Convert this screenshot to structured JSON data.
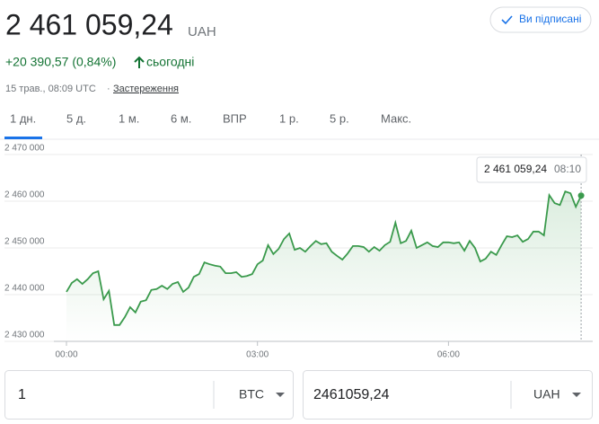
{
  "header": {
    "price": "2 461 059,24",
    "currency": "UAH",
    "change": "+20 390,57 (0,84%)",
    "change_period": "сьогодні",
    "timestamp": "15 трав., 08:09 UTC",
    "separator": "·",
    "disclaimer": "Застереження",
    "follow_button": "Ви підписані"
  },
  "tabs": [
    "1 дн.",
    "5 д.",
    "1 м.",
    "6 м.",
    "ВПР",
    "1 р.",
    "5 р.",
    "Макс."
  ],
  "chart_data": {
    "type": "line",
    "color": "#3a9a4c",
    "x": [
      0,
      5,
      10,
      15,
      20,
      25,
      30,
      35,
      40,
      45,
      50,
      55,
      60,
      65,
      70,
      75,
      80,
      85,
      90,
      95,
      100,
      105,
      110,
      115,
      120,
      125,
      130,
      135,
      140,
      145,
      150,
      155,
      160,
      165,
      170,
      175,
      180,
      185,
      190,
      195,
      200,
      205,
      210,
      215,
      220,
      225,
      230,
      235,
      240,
      245,
      250,
      255,
      260,
      265,
      270,
      275,
      280,
      285,
      290,
      295,
      300,
      305,
      310,
      315,
      320,
      325,
      330,
      335,
      340,
      345,
      350,
      355,
      360,
      365,
      370,
      375,
      380,
      385,
      390,
      395,
      400,
      405,
      410,
      415,
      420,
      425,
      430,
      435,
      440,
      445,
      450,
      455,
      460,
      465,
      470,
      475,
      480,
      485
    ],
    "values": [
      2440600,
      2442500,
      2443300,
      2442300,
      2443300,
      2444600,
      2445000,
      2439000,
      2440800,
      2433500,
      2433500,
      2435200,
      2437300,
      2436200,
      2438500,
      2438800,
      2441000,
      2441200,
      2441900,
      2441200,
      2442300,
      2442700,
      2440600,
      2441500,
      2443800,
      2444400,
      2446900,
      2446500,
      2446200,
      2446000,
      2444600,
      2444600,
      2444800,
      2443800,
      2444000,
      2444400,
      2446500,
      2447300,
      2450600,
      2448700,
      2449800,
      2451900,
      2453100,
      2449600,
      2450000,
      2449200,
      2450400,
      2451500,
      2450800,
      2451000,
      2449200,
      2448300,
      2447500,
      2448800,
      2450400,
      2450400,
      2450200,
      2449200,
      2450200,
      2449400,
      2450600,
      2451300,
      2455400,
      2451000,
      2451500,
      2453700,
      2450000,
      2450600,
      2451200,
      2450400,
      2450200,
      2451200,
      2451200,
      2451000,
      2451200,
      2449400,
      2451500,
      2450000,
      2447100,
      2447700,
      2449200,
      2448500,
      2450600,
      2452500,
      2452300,
      2452700,
      2451300,
      2451900,
      2453500,
      2453500,
      2452700,
      2461300,
      2459600,
      2459200,
      2462100,
      2461700,
      2458800,
      2461200
    ],
    "xlim": [
      0,
      490
    ],
    "ylim": [
      2430000,
      2470000
    ],
    "xticks": [
      {
        "value": 0,
        "label": "00:00"
      },
      {
        "value": 180,
        "label": "03:00"
      },
      {
        "value": 360,
        "label": "06:00"
      }
    ],
    "yticks": [
      {
        "value": 2430000,
        "label": "2 430 000"
      },
      {
        "value": 2440000,
        "label": "2 440 000"
      },
      {
        "value": 2450000,
        "label": "2 450 000"
      },
      {
        "value": 2460000,
        "label": "2 460 000"
      },
      {
        "value": 2470000,
        "label": "2 470 000"
      }
    ],
    "grid": true,
    "tooltip": {
      "value": "2 461 059,24",
      "time": "08:10"
    }
  },
  "converter": {
    "from_amount": "1",
    "from_currency": "BTC",
    "to_amount": "2461059,24",
    "to_currency": "UAH"
  }
}
